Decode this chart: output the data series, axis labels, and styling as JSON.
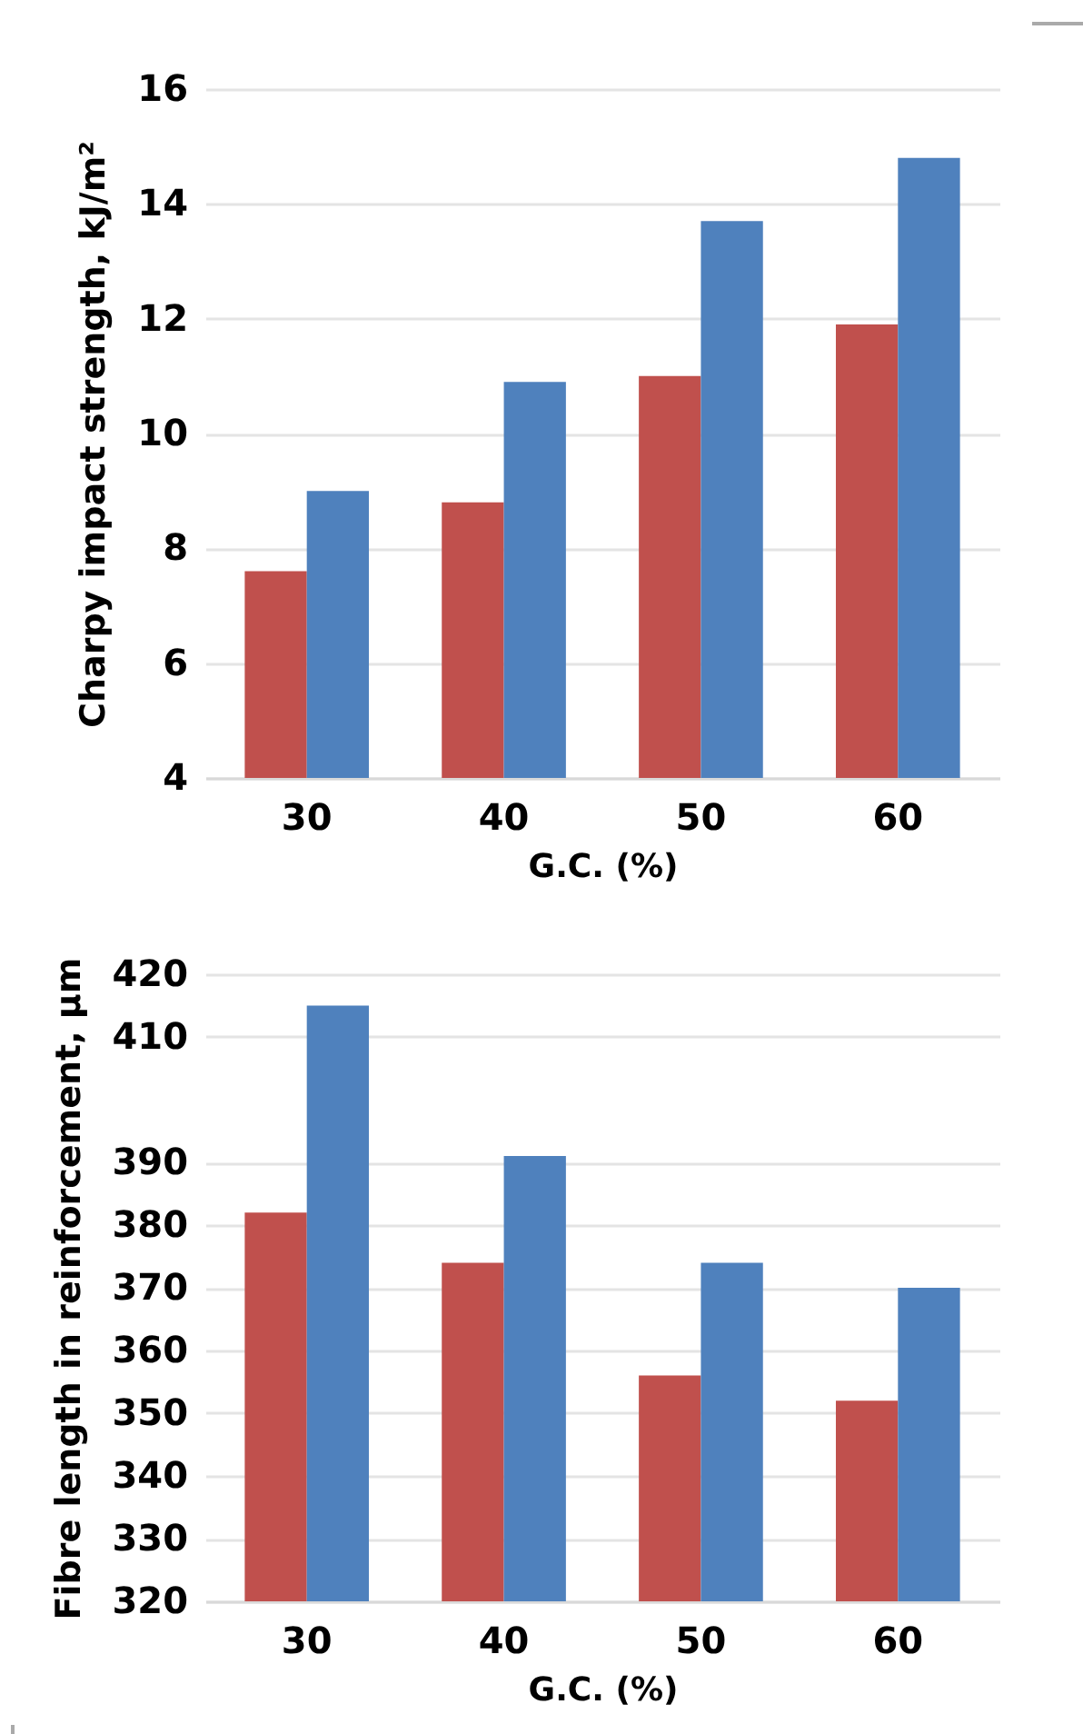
{
  "chart_data": [
    {
      "type": "bar",
      "xlabel": "G.C. (%)",
      "ylabel": "Charpy impact strength, kJ/m²",
      "categories": [
        "30",
        "40",
        "50",
        "60"
      ],
      "series": [
        {
          "color": "#c0504d",
          "values": [
            7.6,
            8.8,
            11.0,
            11.9
          ]
        },
        {
          "color": "#4f81bd",
          "values": [
            9.0,
            10.9,
            13.7,
            14.8
          ]
        }
      ],
      "ylim": [
        4,
        16
      ],
      "yticks": [
        4,
        6,
        8,
        10,
        12,
        14,
        16
      ],
      "grid": "y",
      "legend": false
    },
    {
      "type": "bar",
      "xlabel": "G.C. (%)",
      "ylabel": "Fibre length in reinforcement, μm",
      "categories": [
        "30",
        "40",
        "50",
        "60"
      ],
      "series": [
        {
          "color": "#c0504d",
          "values": [
            382,
            374,
            356,
            352
          ]
        },
        {
          "color": "#4f81bd",
          "values": [
            415,
            391,
            374,
            370
          ]
        }
      ],
      "ylim": [
        320,
        420
      ],
      "yticks": [
        320,
        330,
        340,
        350,
        360,
        370,
        380,
        390,
        410,
        420
      ],
      "grid": "y",
      "legend": false
    }
  ]
}
